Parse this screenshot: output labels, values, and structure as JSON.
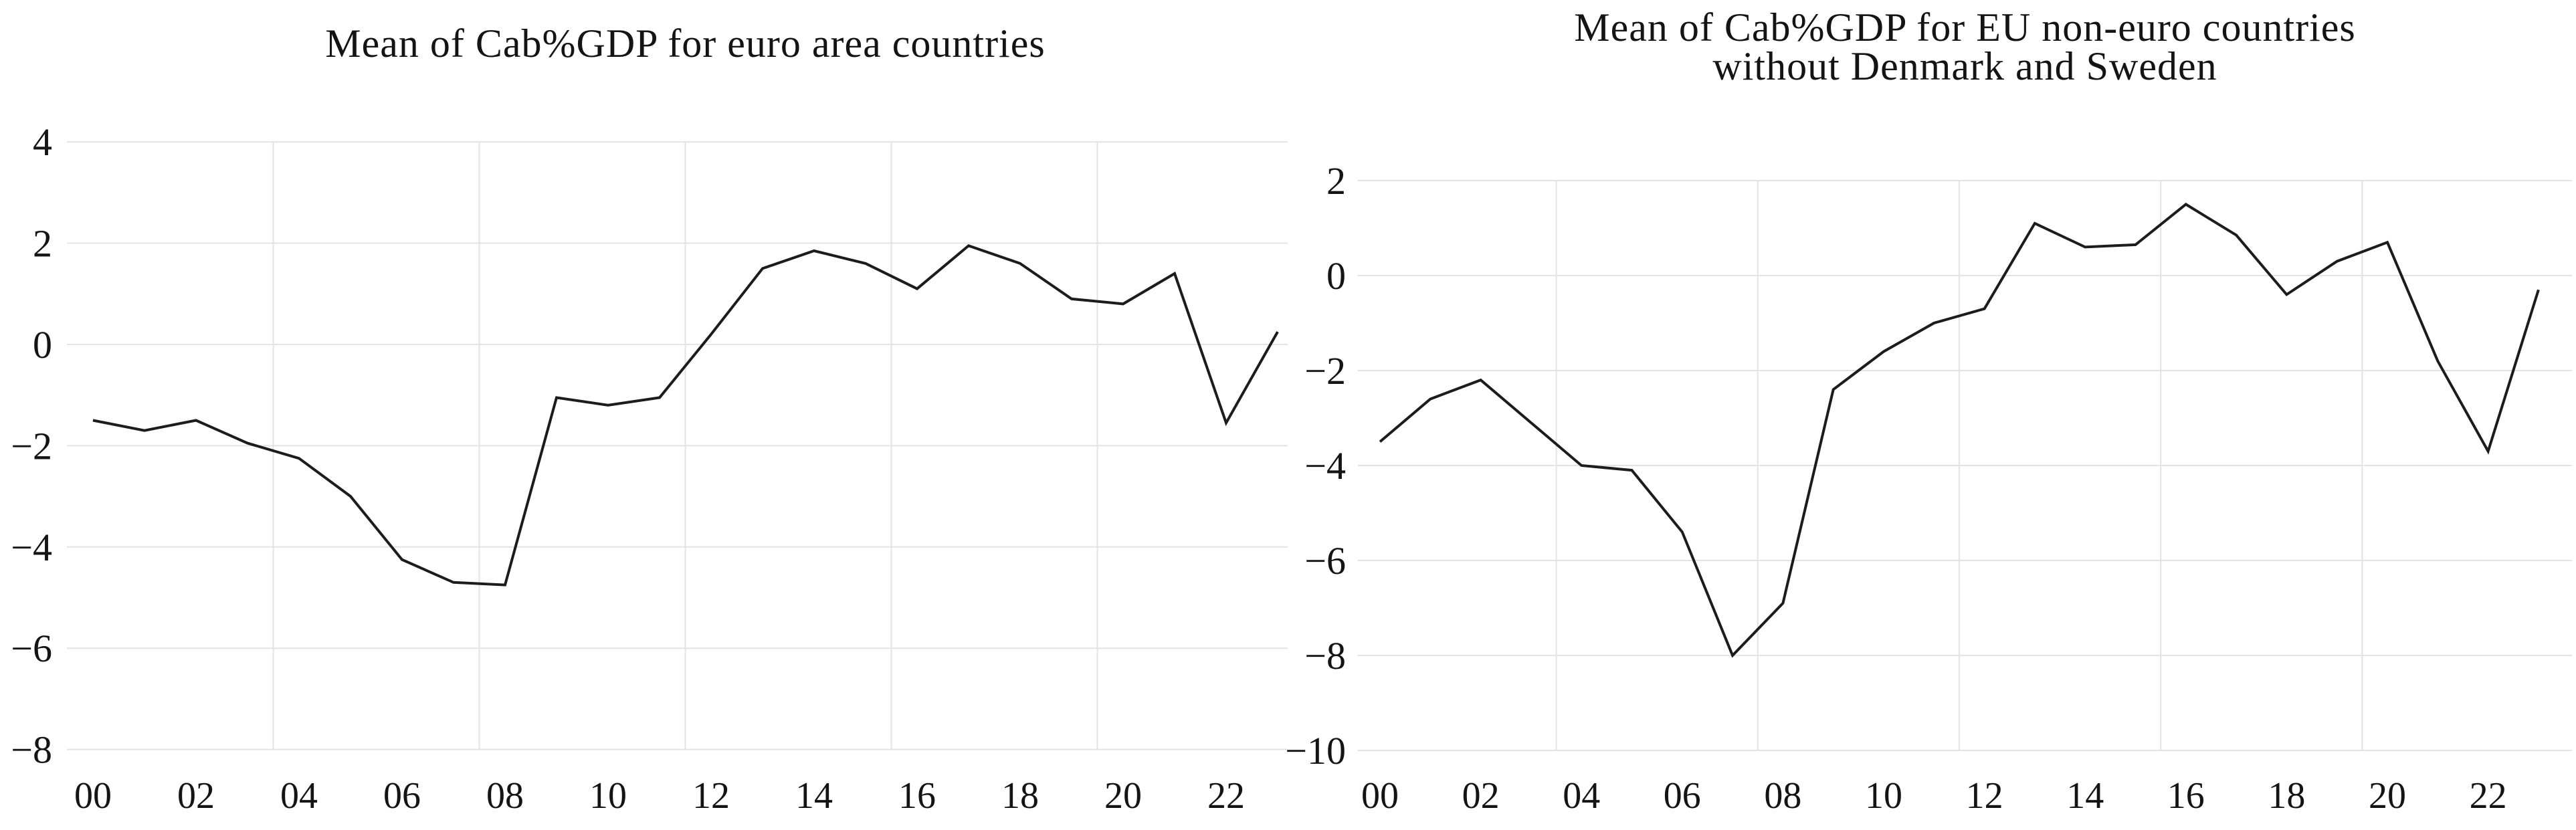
{
  "figure": {
    "background_color": "#ffffff",
    "line_color": "#1c1c1c",
    "grid_color": "#e3e3e3",
    "text_color": "#141414"
  },
  "chart_data": [
    {
      "type": "line",
      "title": "Mean of Cab%GDP for euro area countries",
      "title_lines": [
        "Mean of Cab%GDP for euro area countries"
      ],
      "xlabel": "",
      "ylabel": "",
      "legend_position": "none",
      "grid": true,
      "x": [
        2000,
        2001,
        2002,
        2003,
        2004,
        2005,
        2006,
        2007,
        2008,
        2009,
        2010,
        2011,
        2012,
        2013,
        2014,
        2015,
        2016,
        2017,
        2018,
        2019,
        2020,
        2021,
        2022,
        2023
      ],
      "values": [
        -1.5,
        -1.7,
        -1.5,
        -1.95,
        -2.25,
        -3.0,
        -4.25,
        -4.7,
        -4.75,
        -1.05,
        -1.2,
        -1.05,
        0.2,
        1.5,
        1.85,
        1.6,
        1.1,
        1.95,
        1.6,
        0.9,
        0.8,
        1.4,
        -1.55,
        0.25
      ],
      "xlim": [
        2000,
        2023
      ],
      "ylim": [
        -8,
        4
      ],
      "xtick_labels": [
        "00",
        "02",
        "04",
        "06",
        "08",
        "10",
        "12",
        "14",
        "16",
        "18",
        "20",
        "22"
      ],
      "xtick_years": [
        2000,
        2002,
        2004,
        2006,
        2008,
        2010,
        2012,
        2014,
        2016,
        2018,
        2020,
        2022
      ],
      "ytick_values": [
        4,
        2,
        0,
        -2,
        -4,
        -6,
        -8
      ],
      "ytick_labels": [
        "4",
        "2",
        "0",
        "−2",
        "−4",
        "−6",
        "−8"
      ]
    },
    {
      "type": "line",
      "title": "Mean of Cab%GDP for EU non-euro countries without Denmark and Sweden",
      "title_lines": [
        "Mean of Cab%GDP for EU non-euro countries",
        "without Denmark and Sweden"
      ],
      "xlabel": "",
      "ylabel": "",
      "legend_position": "none",
      "grid": true,
      "x": [
        2000,
        2001,
        2002,
        2003,
        2004,
        2005,
        2006,
        2007,
        2008,
        2009,
        2010,
        2011,
        2012,
        2013,
        2014,
        2015,
        2016,
        2017,
        2018,
        2019,
        2020,
        2021,
        2022,
        2023
      ],
      "values": [
        -3.5,
        -2.6,
        -2.2,
        -3.1,
        -4.0,
        -4.1,
        -5.4,
        -8.0,
        -6.9,
        -2.4,
        -1.6,
        -1.0,
        -0.7,
        1.1,
        0.6,
        0.65,
        1.5,
        0.85,
        -0.4,
        0.3,
        0.7,
        -1.8,
        -3.7,
        -0.3
      ],
      "xlim": [
        2000,
        2023
      ],
      "ylim": [
        -10,
        2
      ],
      "xtick_labels": [
        "00",
        "02",
        "04",
        "06",
        "08",
        "10",
        "12",
        "14",
        "16",
        "18",
        "20",
        "22"
      ],
      "xtick_years": [
        2000,
        2002,
        2004,
        2006,
        2008,
        2010,
        2012,
        2014,
        2016,
        2018,
        2020,
        2022
      ],
      "ytick_values": [
        2,
        0,
        -2,
        -4,
        -6,
        -8,
        -10
      ],
      "ytick_labels": [
        "2",
        "0",
        "−2",
        "−4",
        "−6",
        "−8",
        "−10"
      ]
    }
  ]
}
